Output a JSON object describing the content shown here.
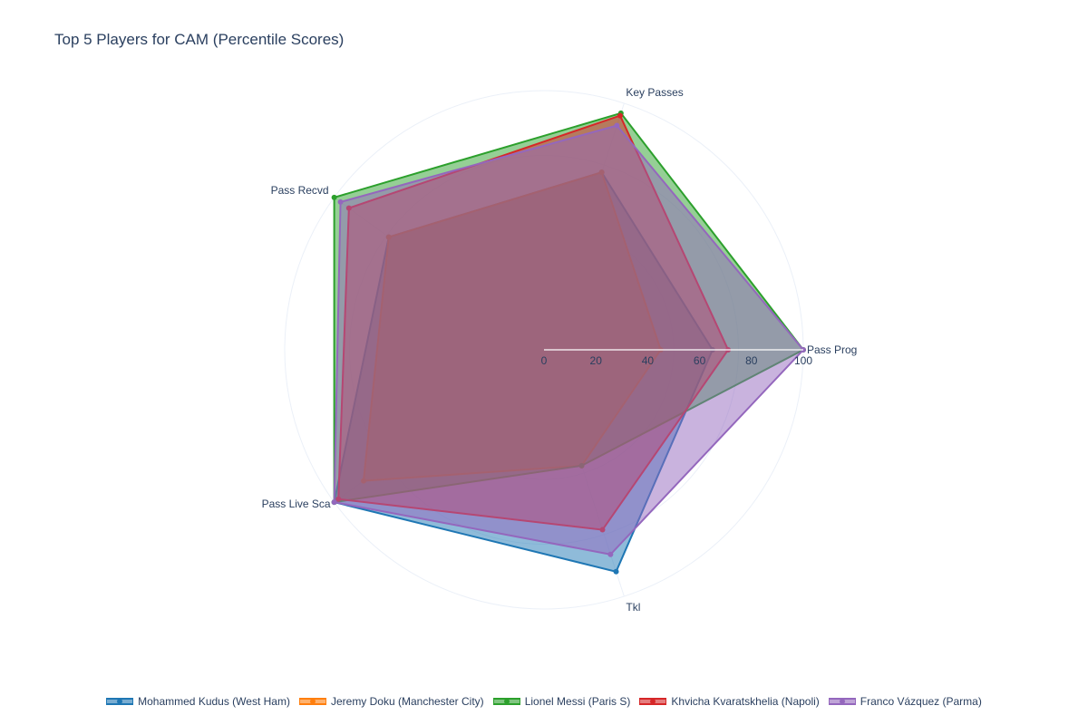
{
  "chart_data": {
    "type": "radar",
    "title": "Top 5 Players for CAM (Percentile Scores)",
    "axes": [
      "Pass Prog",
      "Key Passes",
      "Pass Recvd",
      "Pass Live Sca",
      "Tkl"
    ],
    "radial_range": [
      0,
      100
    ],
    "radial_ticks": [
      "0",
      "20",
      "40",
      "60",
      "80",
      "100"
    ],
    "grid": true,
    "legend_position": "bottom",
    "series": [
      {
        "name": "Mohammed Kudus (West Ham)",
        "color": "#1f77b4",
        "values": [
          65,
          72,
          74,
          100,
          90
        ]
      },
      {
        "name": "Jeremy Doku (Manchester City)",
        "color": "#ff7f0e",
        "values": [
          45,
          72,
          74,
          86,
          47
        ]
      },
      {
        "name": "Lionel Messi (Paris S)",
        "color": "#2ca02c",
        "values": [
          100,
          96,
          100,
          100,
          47
        ]
      },
      {
        "name": "Khvicha Kvaratskhelia (Napoli)",
        "color": "#d62728",
        "values": [
          71,
          95,
          93,
          98,
          73
        ]
      },
      {
        "name": "Franco Vázquez (Parma)",
        "color": "#9467bd",
        "values": [
          100,
          91,
          97,
          100,
          83
        ]
      }
    ]
  }
}
